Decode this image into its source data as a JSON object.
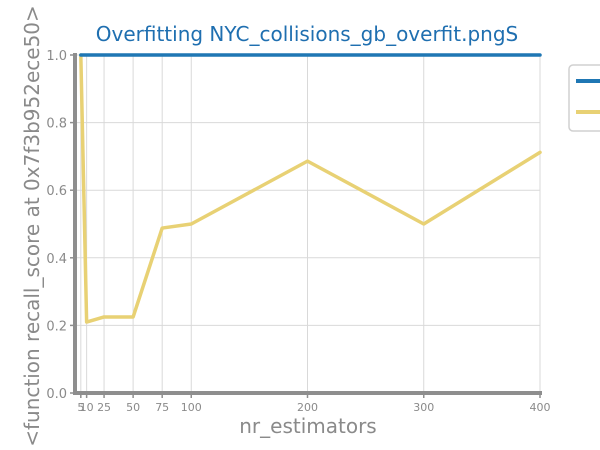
{
  "chart_data": {
    "type": "line",
    "title": "Overfitting NYC_collisions_gb_overfit.pngS",
    "xlabel": "nr_estimators",
    "ylabel": "<function recall_score at 0x7f3b952ece50>",
    "x": [
      5,
      10,
      25,
      50,
      75,
      100,
      200,
      300,
      400
    ],
    "x_ticks": [
      5,
      10,
      25,
      50,
      75,
      100,
      200,
      300,
      400
    ],
    "y_ticks": [
      "0.0",
      "0.2",
      "0.4",
      "0.6",
      "0.8",
      "1.0"
    ],
    "xlim": [
      0,
      400
    ],
    "ylim": [
      0,
      1
    ],
    "grid": true,
    "legend_position": "right (clipped)",
    "series": [
      {
        "color": "#1f77b4",
        "values": [
          1.0,
          1.0,
          1.0,
          1.0,
          1.0,
          1.0,
          1.0,
          1.0,
          1.0
        ]
      },
      {
        "color": "#e8d174",
        "values": [
          1.0,
          0.21,
          0.225,
          0.225,
          0.488,
          0.5,
          0.686,
          0.5,
          0.712
        ]
      }
    ]
  },
  "colors": {
    "title": "#1f6fb0",
    "axis_text": "#8a8a8a",
    "axis_line": "#8e8e8e",
    "grid": "#d9d9d9",
    "legend_border": "#d0d0d0"
  }
}
